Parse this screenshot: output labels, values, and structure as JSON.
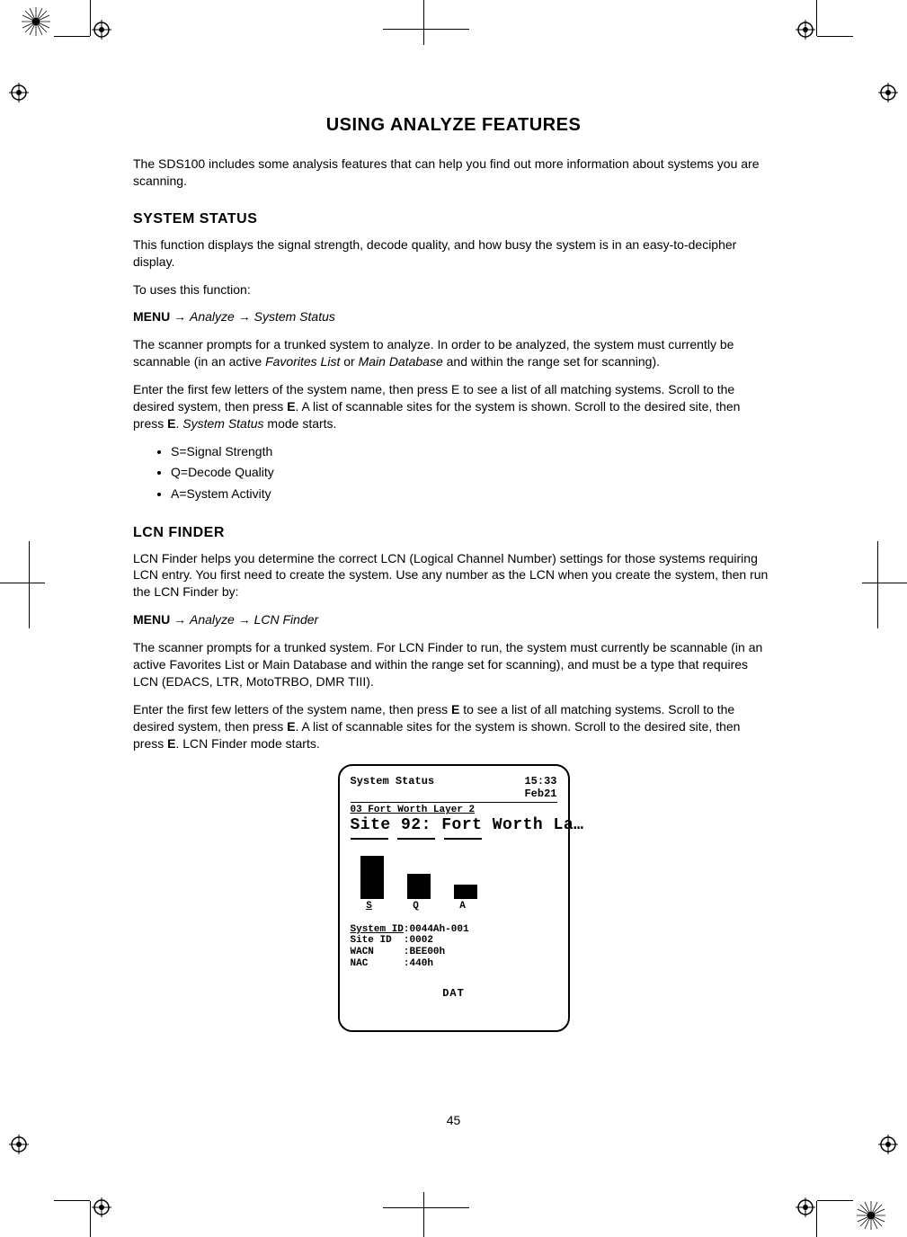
{
  "title": "USING ANALYZE FEATURES",
  "intro": "The SDS100 includes some analysis features that can help you find out more information about systems you are scanning.",
  "section1": {
    "heading": "SYSTEM STATUS",
    "p1": "This function displays the signal strength, decode quality, and how busy the system is in an easy-to-decipher display.",
    "p2": "To uses this function:",
    "menu_prefix": "MENU",
    "arrow1": " → ",
    "menu_item1": "Analyze",
    "arrow2": " → ",
    "menu_item2": "System Status",
    "p3a": "The scanner prompts for a trunked system to analyze. In order to be analyzed, the system must currently be scannable (in an active ",
    "p3_fav": "Favorites List",
    "p3_or": " or ",
    "p3_main": "Main Database",
    "p3b": " and within the range set for scanning).",
    "p4a": "Enter the first few letters of the system name, then press E to see a list of all matching systems. Scroll to the desired system, then press ",
    "p4_e1": "E",
    "p4b": ". A list of scannable sites for the system is shown. Scroll to the desired site, then press ",
    "p4_e2": "E",
    "p4c": ". ",
    "p4_mode": "System Status",
    "p4d": " mode starts.",
    "bullets": [
      "S=Signal Strength",
      "Q=Decode Quality",
      "A=System Activity"
    ]
  },
  "section2": {
    "heading": "LCN FINDER",
    "p1": "LCN Finder helps you determine the correct LCN (Logical Channel Number) settings for those systems requiring LCN entry. You first need to create the system. Use any number as the LCN when you create the system, then run the LCN Finder by:",
    "menu_prefix": "MENU",
    "arrow1": " → ",
    "menu_item1": "Analyze",
    "arrow2": " → ",
    "menu_item2": "LCN Finder",
    "p2": "The scanner prompts for a trunked system. For LCN Finder to run, the system must currently be scannable (in an active Favorites List or Main Database and within the range set for scanning), and must be a type that requires LCN (EDACS, LTR, MotoTRBO, DMR TIII).",
    "p3a": "Enter the first few letters of the system name, then press ",
    "p3_e1": "E",
    "p3b": " to see a list of all matching systems. Scroll to the desired system, then press ",
    "p3_e2": "E",
    "p3c": ". A list of scannable sites for the system is shown. Scroll to the desired site, then press ",
    "p3_e3": "E",
    "p3d": ". LCN Finder mode starts."
  },
  "lcd": {
    "time": "15:33",
    "date": "Feb21",
    "mode": "System Status",
    "line1": "03 Fort Worth Layer 2",
    "line2": "Site 92: Fort Worth La…",
    "bars": {
      "S": {
        "label": "S",
        "height": 48
      },
      "Q": {
        "label": "Q",
        "height": 28
      },
      "A": {
        "label": "A",
        "height": 16
      }
    },
    "info": {
      "system_id_label": "System ID",
      "system_id": "0044Ah-001",
      "site_id_label": "Site ID",
      "site_id": "0002",
      "wacn_label": "WACN",
      "wacn": "BEE00h",
      "nac_label": "NAC",
      "nac": "440h"
    },
    "footer": "DAT"
  },
  "page_number": "45",
  "colors": {
    "text": "#000000",
    "bg": "#ffffff"
  }
}
